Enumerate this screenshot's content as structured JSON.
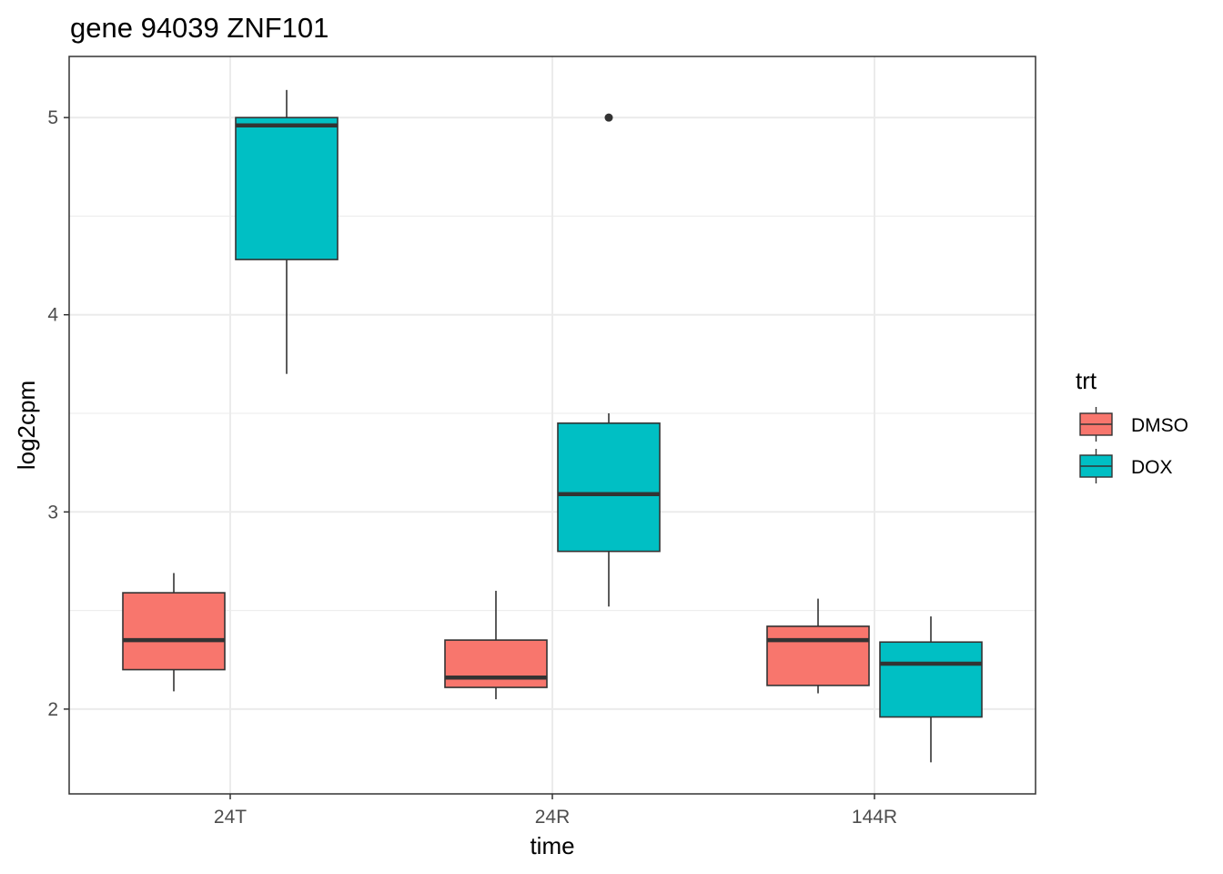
{
  "chart_data": {
    "type": "box",
    "title": "gene 94039 ZNF101",
    "xlabel": "time",
    "ylabel": "log2cpm",
    "categories": [
      "24T",
      "24R",
      "144R"
    ],
    "yticks": [
      2,
      3,
      4,
      5
    ],
    "ylim": [
      1.57,
      5.31
    ],
    "grid": true,
    "legend": {
      "title": "trt",
      "placement": "right",
      "entries": [
        {
          "name": "DMSO",
          "color": "#F8766D"
        },
        {
          "name": "DOX",
          "color": "#00BFC4"
        }
      ]
    },
    "series": [
      {
        "name": "DMSO",
        "color": "#F8766D",
        "boxes": [
          {
            "category": "24T",
            "min": 2.09,
            "q1": 2.2,
            "median": 2.35,
            "q3": 2.59,
            "max": 2.69,
            "outliers": []
          },
          {
            "category": "24R",
            "min": 2.05,
            "q1": 2.11,
            "median": 2.16,
            "q3": 2.35,
            "max": 2.6,
            "outliers": []
          },
          {
            "category": "144R",
            "min": 2.08,
            "q1": 2.12,
            "median": 2.35,
            "q3": 2.42,
            "max": 2.56,
            "outliers": []
          }
        ]
      },
      {
        "name": "DOX",
        "color": "#00BFC4",
        "boxes": [
          {
            "category": "24T",
            "min": 3.7,
            "q1": 4.28,
            "median": 4.96,
            "q3": 5.0,
            "max": 5.14,
            "outliers": []
          },
          {
            "category": "24R",
            "min": 2.52,
            "q1": 2.8,
            "median": 3.09,
            "q3": 3.45,
            "max": 3.5,
            "outliers": [
              5.0
            ]
          },
          {
            "category": "144R",
            "min": 1.73,
            "q1": 1.96,
            "median": 2.23,
            "q3": 2.34,
            "max": 2.47,
            "outliers": []
          }
        ]
      }
    ]
  }
}
